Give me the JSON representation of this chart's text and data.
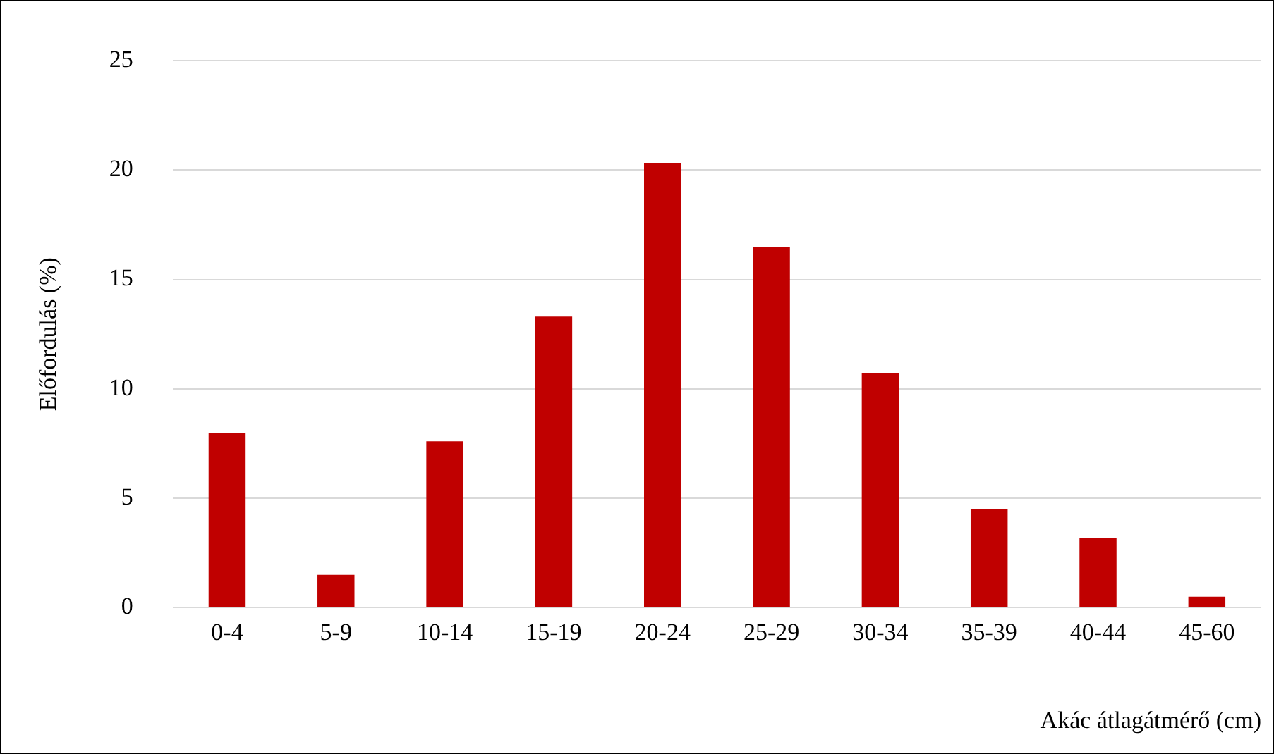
{
  "chart_data": {
    "type": "bar",
    "xlabel": "Akác átlagátmérő (cm)",
    "ylabel": "Előfordulás (%)",
    "categories": [
      "0-4",
      "5-9",
      "10-14",
      "15-19",
      "20-24",
      "25-29",
      "30-34",
      "35-39",
      "40-44",
      "45-60"
    ],
    "values": [
      8.0,
      1.5,
      7.6,
      13.3,
      20.3,
      16.5,
      10.7,
      4.5,
      3.2,
      0.5
    ],
    "color": "#c00000",
    "ylim": [
      0,
      25
    ],
    "yticks": [
      0,
      5,
      10,
      15,
      20,
      25
    ],
    "grid": "y"
  }
}
